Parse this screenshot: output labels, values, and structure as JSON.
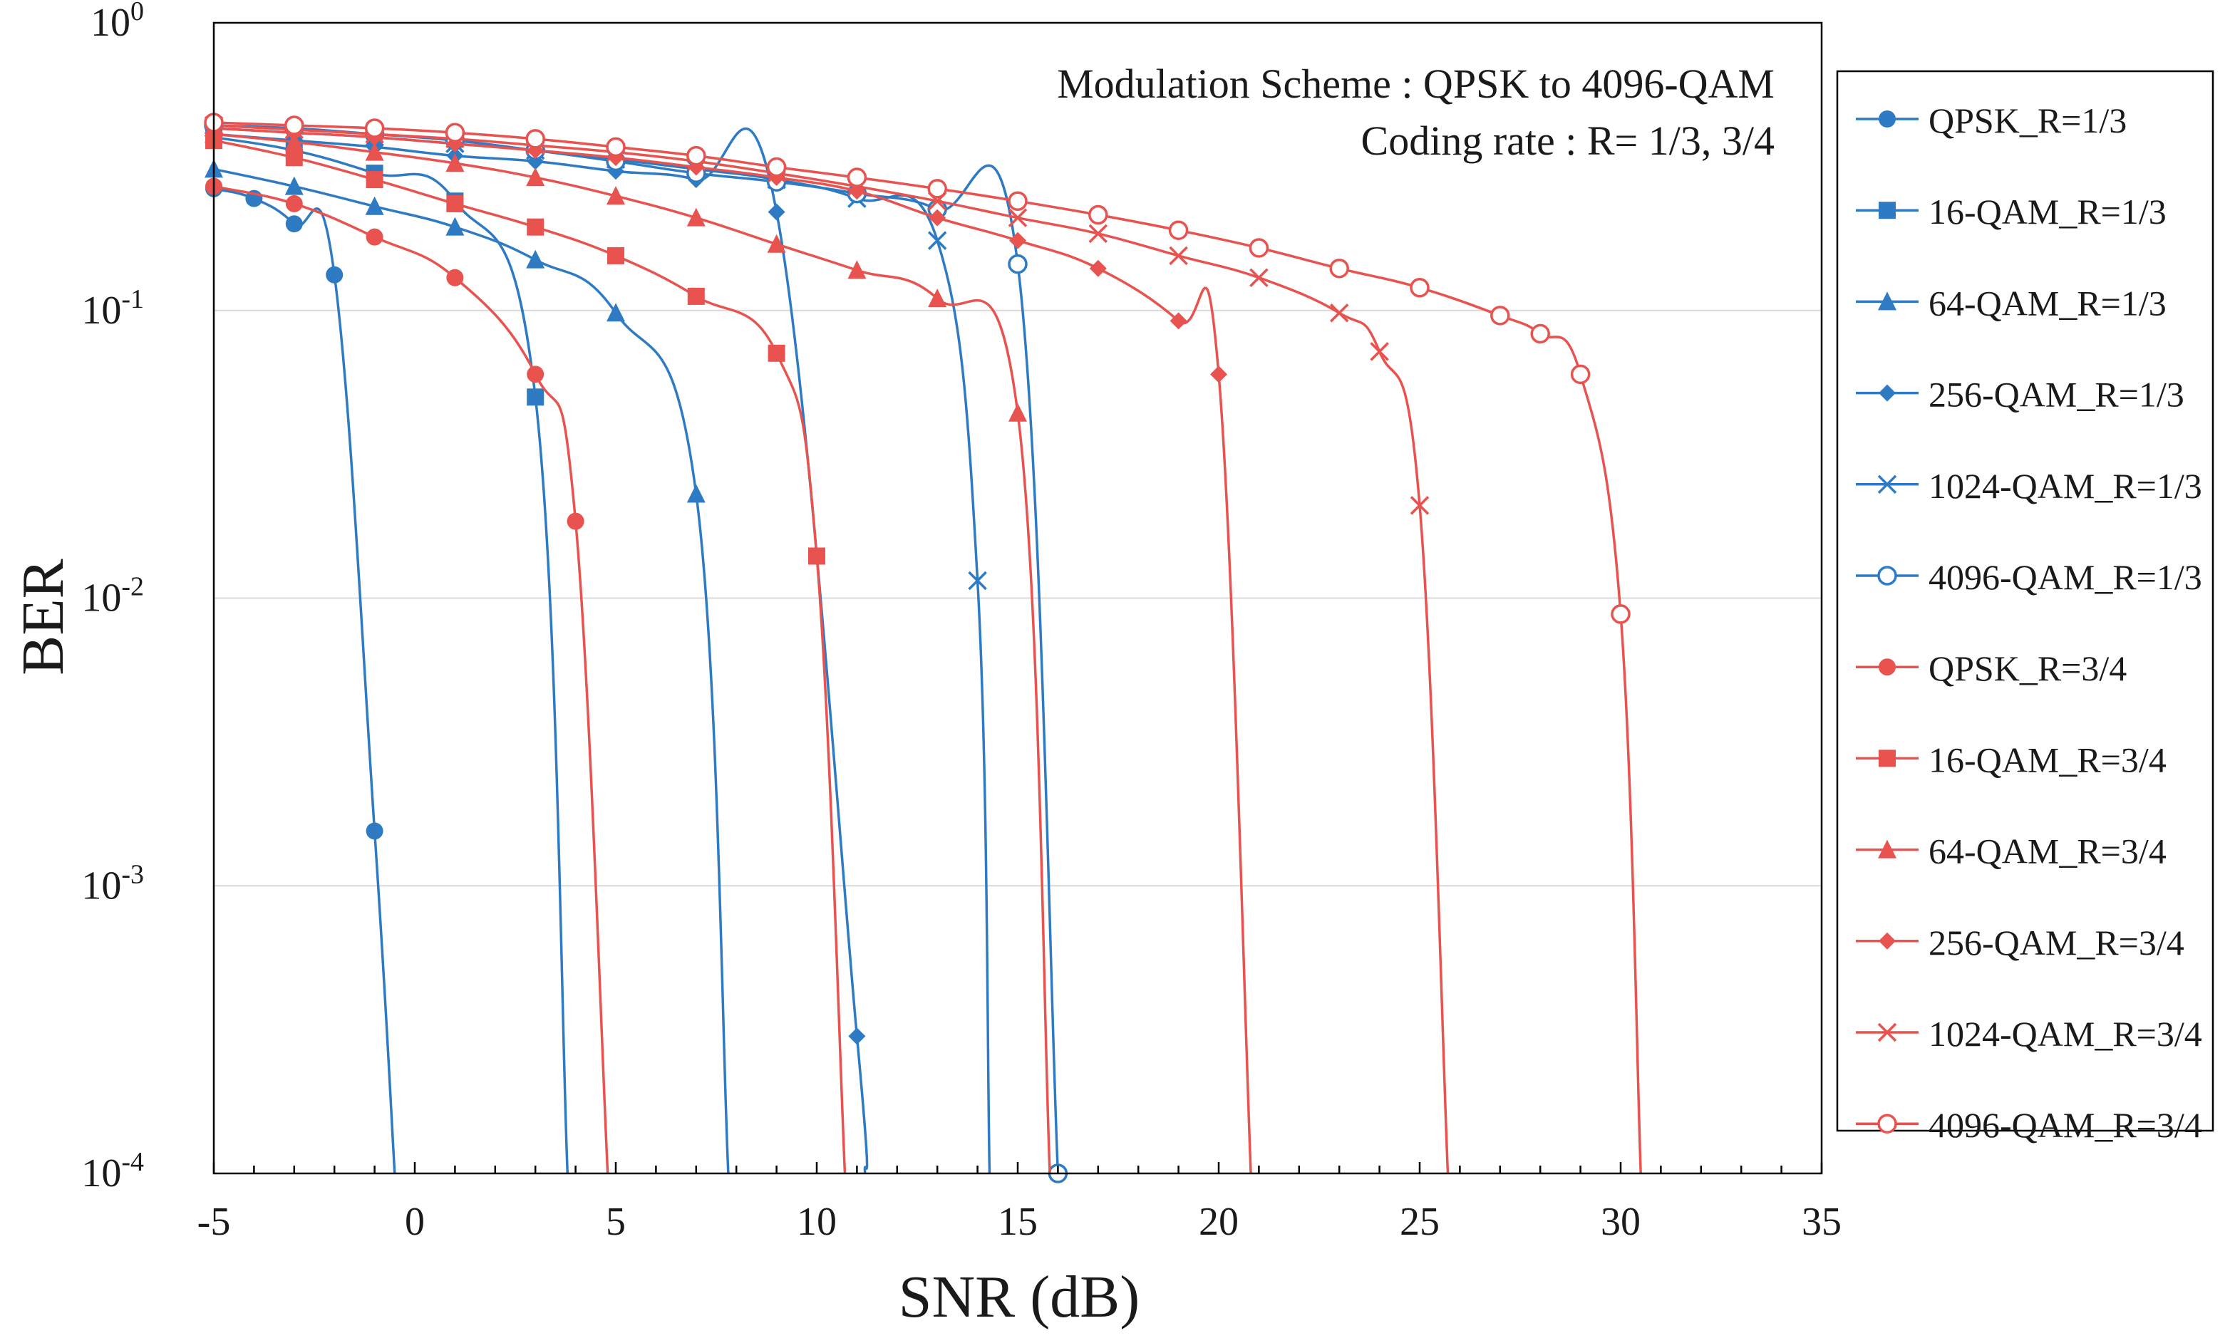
{
  "chart_data": {
    "type": "line",
    "title": "",
    "xlabel": "SNR (dB)",
    "ylabel": "BER",
    "xlim": [
      -5,
      35
    ],
    "ylim": [
      0.0001,
      1
    ],
    "yscale": "log",
    "x_ticks": [
      "-5",
      "0",
      "5",
      "10",
      "15",
      "20",
      "25",
      "30",
      "35"
    ],
    "y_ticks": [
      {
        "base": "10",
        "exp": "0",
        "value": 1
      },
      {
        "base": "10",
        "exp": "-1",
        "value": 0.1
      },
      {
        "base": "10",
        "exp": "-2",
        "value": 0.01
      },
      {
        "base": "10",
        "exp": "-3",
        "value": 0.001
      },
      {
        "base": "10",
        "exp": "-4",
        "value": 0.0001
      }
    ],
    "grid": "horizontal",
    "legend_position": "right",
    "annotations": [
      "Modulation Scheme : QPSK to 4096-QAM",
      "Coding rate : R= 1/3, 3/4"
    ],
    "colors": {
      "R=1/3": "#2e7bc4",
      "R=3/4": "#e8524f",
      "grid": "#d9d9d9",
      "axis": "#000000"
    },
    "series": [
      {
        "name": "QPSK_R=1/3",
        "color": "#2e7bc4",
        "marker": "circle",
        "x": [
          -5,
          -4,
          -3,
          -2,
          -1,
          -0.5
        ],
        "y": [
          0.265,
          0.245,
          0.2,
          0.133,
          0.00155,
          0.0001
        ],
        "markers": [
          true,
          true,
          true,
          true,
          true,
          false
        ]
      },
      {
        "name": "16-QAM_R=1/3",
        "color": "#2e7bc4",
        "marker": "square",
        "x": [
          -5,
          -3,
          -1,
          1,
          3,
          3.8
        ],
        "y": [
          0.4,
          0.36,
          0.3,
          0.24,
          0.05,
          0.0001
        ],
        "markers": [
          true,
          true,
          true,
          true,
          true,
          false
        ]
      },
      {
        "name": "64-QAM_R=1/3",
        "color": "#2e7bc4",
        "marker": "triangle",
        "x": [
          -5,
          -3,
          -1,
          1,
          3,
          5,
          7,
          7.8
        ],
        "y": [
          0.31,
          0.27,
          0.23,
          0.195,
          0.15,
          0.098,
          0.023,
          0.0001
        ],
        "markers": [
          true,
          true,
          true,
          true,
          true,
          true,
          true,
          false
        ]
      },
      {
        "name": "256-QAM_R=1/3",
        "color": "#2e7bc4",
        "marker": "diamond",
        "x": [
          -5,
          -3,
          -1,
          1,
          3,
          5,
          7,
          9,
          11,
          11.2
        ],
        "y": [
          0.41,
          0.39,
          0.37,
          0.345,
          0.33,
          0.305,
          0.285,
          0.22,
          0.0003,
          0.0001
        ],
        "markers": [
          true,
          true,
          true,
          true,
          true,
          true,
          true,
          true,
          true,
          false
        ]
      },
      {
        "name": "1024-QAM_R=1/3",
        "color": "#2e7bc4",
        "marker": "x",
        "x": [
          -5,
          -3,
          -1,
          1,
          3,
          5,
          7,
          9,
          11,
          13,
          14,
          14.3
        ],
        "y": [
          0.43,
          0.415,
          0.4,
          0.38,
          0.36,
          0.335,
          0.31,
          0.285,
          0.245,
          0.175,
          0.0115,
          0.0001
        ],
        "markers": [
          true,
          true,
          true,
          true,
          true,
          true,
          true,
          true,
          true,
          true,
          true,
          false
        ]
      },
      {
        "name": "4096-QAM_R=1/3",
        "color": "#2e7bc4",
        "marker": "open-circle",
        "x": [
          -5,
          -3,
          -1,
          1,
          3,
          5,
          7,
          9,
          11,
          13,
          15,
          16
        ],
        "y": [
          0.44,
          0.43,
          0.41,
          0.39,
          0.36,
          0.33,
          0.3,
          0.28,
          0.255,
          0.225,
          0.145,
          0.0001
        ],
        "markers": [
          true,
          true,
          true,
          true,
          true,
          true,
          true,
          true,
          true,
          true,
          true,
          true
        ]
      },
      {
        "name": "QPSK_R=3/4",
        "color": "#e8524f",
        "marker": "circle",
        "x": [
          -5,
          -3,
          -1,
          1,
          3,
          4,
          4.8
        ],
        "y": [
          0.27,
          0.235,
          0.18,
          0.13,
          0.06,
          0.0185,
          0.0001
        ],
        "markers": [
          true,
          true,
          true,
          true,
          true,
          true,
          false
        ]
      },
      {
        "name": "16-QAM_R=3/4",
        "color": "#e8524f",
        "marker": "square",
        "x": [
          -5,
          -3,
          -1,
          1,
          3,
          5,
          7,
          9,
          10,
          10.7
        ],
        "y": [
          0.39,
          0.34,
          0.285,
          0.235,
          0.195,
          0.155,
          0.112,
          0.071,
          0.014,
          0.0001
        ],
        "markers": [
          true,
          true,
          true,
          true,
          true,
          true,
          true,
          true,
          true,
          false
        ]
      },
      {
        "name": "64-QAM_R=3/4",
        "color": "#e8524f",
        "marker": "triangle",
        "x": [
          -5,
          -3,
          -1,
          1,
          3,
          5,
          7,
          9,
          11,
          13,
          15,
          15.8
        ],
        "y": [
          0.41,
          0.385,
          0.355,
          0.325,
          0.29,
          0.25,
          0.21,
          0.17,
          0.138,
          0.11,
          0.044,
          0.0001
        ],
        "markers": [
          true,
          true,
          true,
          true,
          true,
          true,
          true,
          true,
          true,
          true,
          true,
          false
        ]
      },
      {
        "name": "256-QAM_R=3/4",
        "color": "#e8524f",
        "marker": "diamond",
        "x": [
          -5,
          -3,
          -1,
          1,
          3,
          5,
          7,
          9,
          11,
          13,
          15,
          17,
          19,
          20,
          20.8
        ],
        "y": [
          0.43,
          0.415,
          0.4,
          0.38,
          0.36,
          0.34,
          0.315,
          0.29,
          0.26,
          0.21,
          0.175,
          0.14,
          0.092,
          0.06,
          0.0001
        ],
        "markers": [
          true,
          true,
          true,
          true,
          true,
          true,
          true,
          true,
          true,
          true,
          true,
          true,
          true,
          true,
          false
        ]
      },
      {
        "name": "1024-QAM_R=3/4",
        "color": "#e8524f",
        "marker": "x",
        "x": [
          -5,
          -3,
          -1,
          1,
          3,
          5,
          7,
          9,
          11,
          13,
          15,
          17,
          19,
          21,
          23,
          24,
          25,
          25.7
        ],
        "y": [
          0.44,
          0.425,
          0.41,
          0.395,
          0.375,
          0.355,
          0.33,
          0.3,
          0.27,
          0.24,
          0.21,
          0.185,
          0.155,
          0.13,
          0.098,
          0.072,
          0.021,
          0.0001
        ],
        "markers": [
          true,
          true,
          true,
          true,
          true,
          true,
          true,
          true,
          true,
          true,
          true,
          true,
          true,
          true,
          true,
          true,
          true,
          false
        ]
      },
      {
        "name": "4096-QAM_R=3/4",
        "color": "#e8524f",
        "marker": "open-circle",
        "x": [
          -5,
          -3,
          -1,
          1,
          3,
          5,
          7,
          9,
          11,
          13,
          15,
          17,
          19,
          21,
          23,
          25,
          27,
          28,
          29,
          30,
          30.5
        ],
        "y": [
          0.45,
          0.44,
          0.43,
          0.415,
          0.395,
          0.37,
          0.345,
          0.315,
          0.29,
          0.265,
          0.24,
          0.215,
          0.19,
          0.165,
          0.14,
          0.12,
          0.096,
          0.083,
          0.06,
          0.0088,
          0.0001
        ],
        "markers": [
          true,
          true,
          true,
          true,
          true,
          true,
          true,
          true,
          true,
          true,
          true,
          true,
          true,
          true,
          true,
          true,
          true,
          true,
          true,
          true,
          false
        ]
      }
    ]
  }
}
